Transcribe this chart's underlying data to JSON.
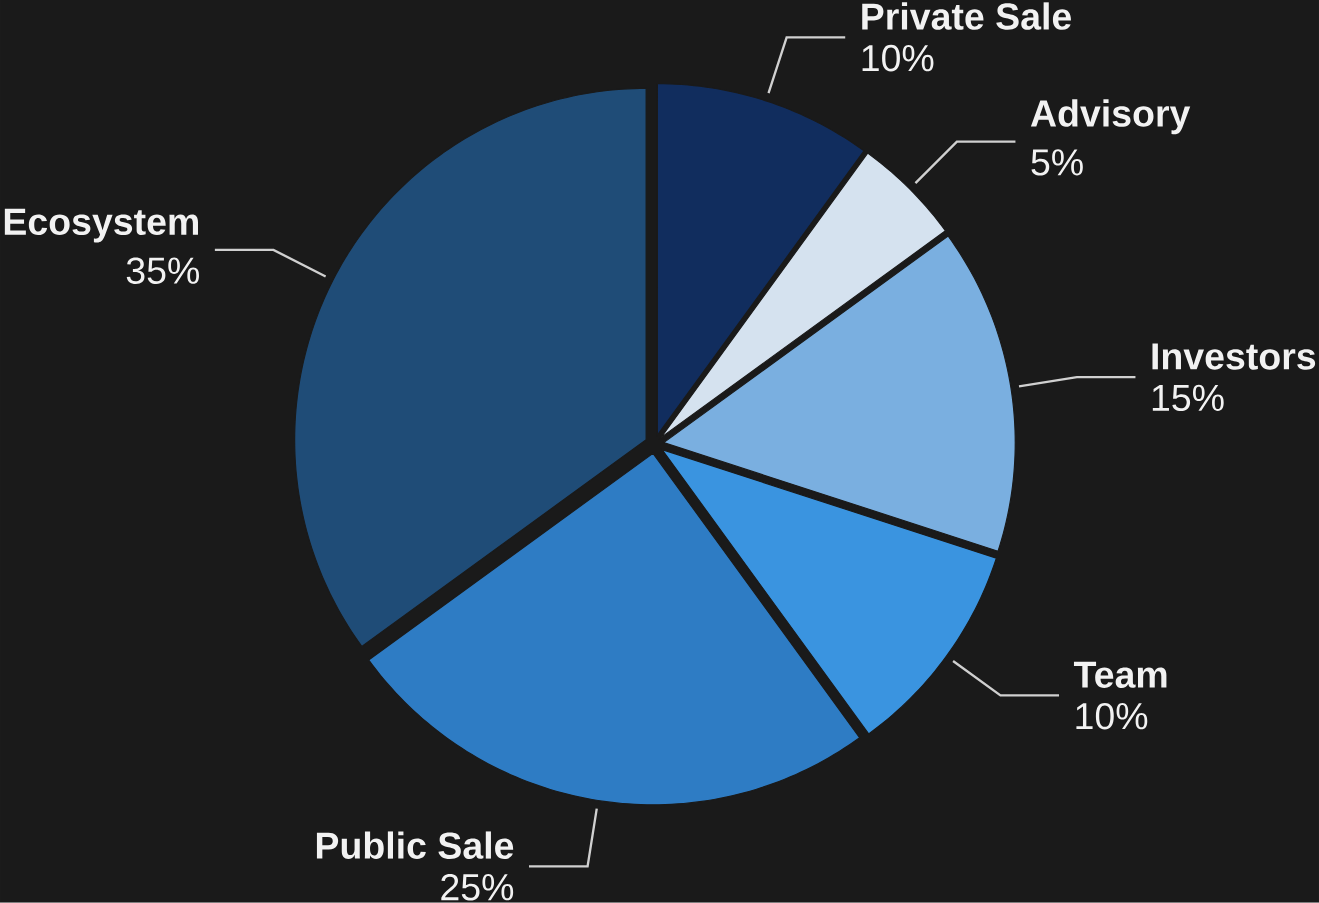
{
  "chart_data": {
    "type": "pie",
    "categories": [
      "Private Sale",
      "Advisory",
      "Investors",
      "Team",
      "Public Sale",
      "Ecosystem"
    ],
    "values": [
      10,
      5,
      15,
      10,
      25,
      35
    ],
    "value_labels": [
      "10%",
      "5%",
      "15%",
      "10%",
      "25%",
      "35%"
    ],
    "colors": [
      "#112d5e",
      "#d5e2ef",
      "#7aafe0",
      "#3a94e0",
      "#2e7cc4",
      "#1f4c77"
    ]
  }
}
